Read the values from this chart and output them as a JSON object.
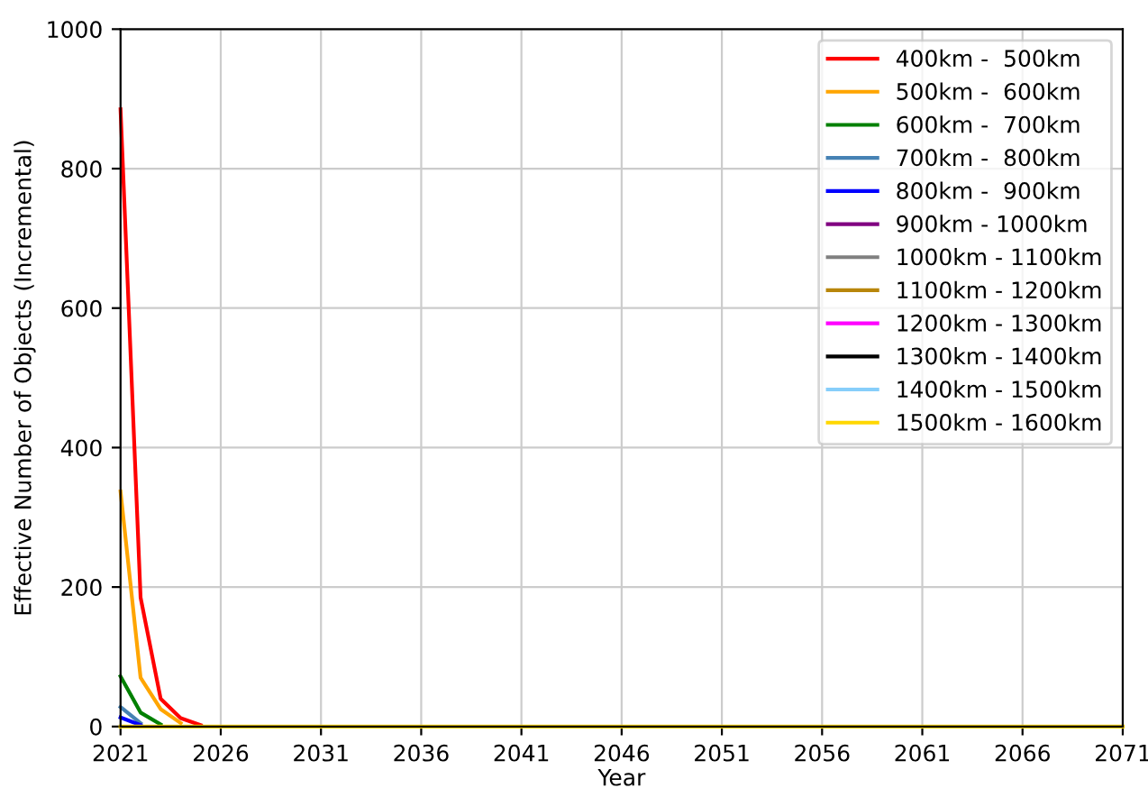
{
  "chart_data": {
    "type": "line",
    "xlabel": "Year",
    "ylabel": "Effective Number of Objects (Incremental)",
    "x": [
      2021,
      2022,
      2023,
      2024,
      2025,
      2026,
      2071
    ],
    "xlim": [
      2021,
      2071
    ],
    "xticks": [
      2021,
      2026,
      2031,
      2036,
      2041,
      2046,
      2051,
      2056,
      2061,
      2066,
      2071
    ],
    "ylim": [
      0,
      1000
    ],
    "yticks": [
      0,
      200,
      400,
      600,
      800,
      1000
    ],
    "grid": true,
    "legend": "top right",
    "series": [
      {
        "name": "400km -  500km",
        "color": "#ff0000",
        "values": [
          885,
          185,
          40,
          12,
          2,
          null,
          null
        ]
      },
      {
        "name": "500km -  600km",
        "color": "#ffa500",
        "values": [
          337,
          70,
          25,
          5,
          null,
          null,
          null
        ]
      },
      {
        "name": "600km -  700km",
        "color": "#008000",
        "values": [
          72,
          20,
          3,
          null,
          null,
          null,
          null
        ]
      },
      {
        "name": "700km -  800km",
        "color": "#4682b4",
        "values": [
          28,
          5,
          null,
          null,
          null,
          null,
          null
        ]
      },
      {
        "name": "800km -  900km",
        "color": "#0000ff",
        "values": [
          13,
          2,
          null,
          null,
          null,
          null,
          null
        ]
      },
      {
        "name": "900km - 1000km",
        "color": "#800080",
        "values": [
          null,
          null,
          null,
          null,
          null,
          null,
          null
        ]
      },
      {
        "name": "1000km - 1100km",
        "color": "#808080",
        "values": [
          null,
          null,
          null,
          null,
          null,
          null,
          null
        ]
      },
      {
        "name": "1100km - 1200km",
        "color": "#b8860b",
        "values": [
          null,
          null,
          null,
          null,
          null,
          null,
          null
        ]
      },
      {
        "name": "1200km - 1300km",
        "color": "#ff00ff",
        "values": [
          null,
          null,
          null,
          null,
          null,
          null,
          null
        ]
      },
      {
        "name": "1300km - 1400km",
        "color": "#000000",
        "values": [
          null,
          null,
          null,
          null,
          null,
          null,
          null
        ]
      },
      {
        "name": "1400km - 1500km",
        "color": "#87cefa",
        "values": [
          null,
          null,
          null,
          null,
          null,
          null,
          null
        ]
      },
      {
        "name": "1500km - 1600km",
        "color": "#ffd700",
        "values": [
          0,
          0,
          0,
          0,
          0,
          0,
          0
        ]
      }
    ]
  }
}
